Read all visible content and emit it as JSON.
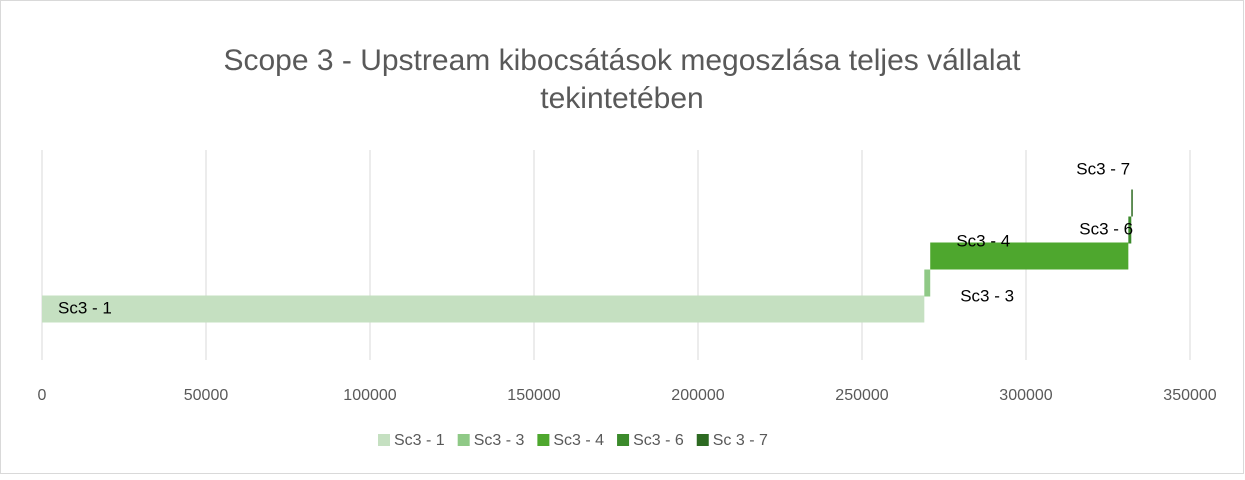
{
  "chart_data": {
    "type": "waterfall-bar",
    "title": [
      "Scope 3 - Upstream kibocsátások megoszlása teljes vállalat",
      "tekintetében"
    ],
    "series": [
      {
        "name": "Sc3 - 1",
        "color": "#c5e0c1",
        "values": [
          269000
        ]
      },
      {
        "name": "Sc3 - 3",
        "color": "#8fc986",
        "values": [
          1800
        ]
      },
      {
        "name": "Sc3 - 4",
        "color": "#4ea72e",
        "values": [
          60400
        ]
      },
      {
        "name": "Sc3 - 6",
        "color": "#3b8a2b",
        "values": [
          900
        ]
      },
      {
        "name": "Sc 3 - 7",
        "color": "#2d6a22",
        "values": [
          300
        ]
      }
    ],
    "data_labels": [
      "Sc3 - 1",
      "Sc3 - 3",
      "Sc3 - 4",
      "Sc3 - 6",
      "Sc3 - 7"
    ],
    "xlim": [
      0,
      350000
    ],
    "xticks": [
      0,
      50000,
      100000,
      150000,
      200000,
      250000,
      300000,
      350000
    ],
    "grid": true,
    "legend": "bottom"
  }
}
